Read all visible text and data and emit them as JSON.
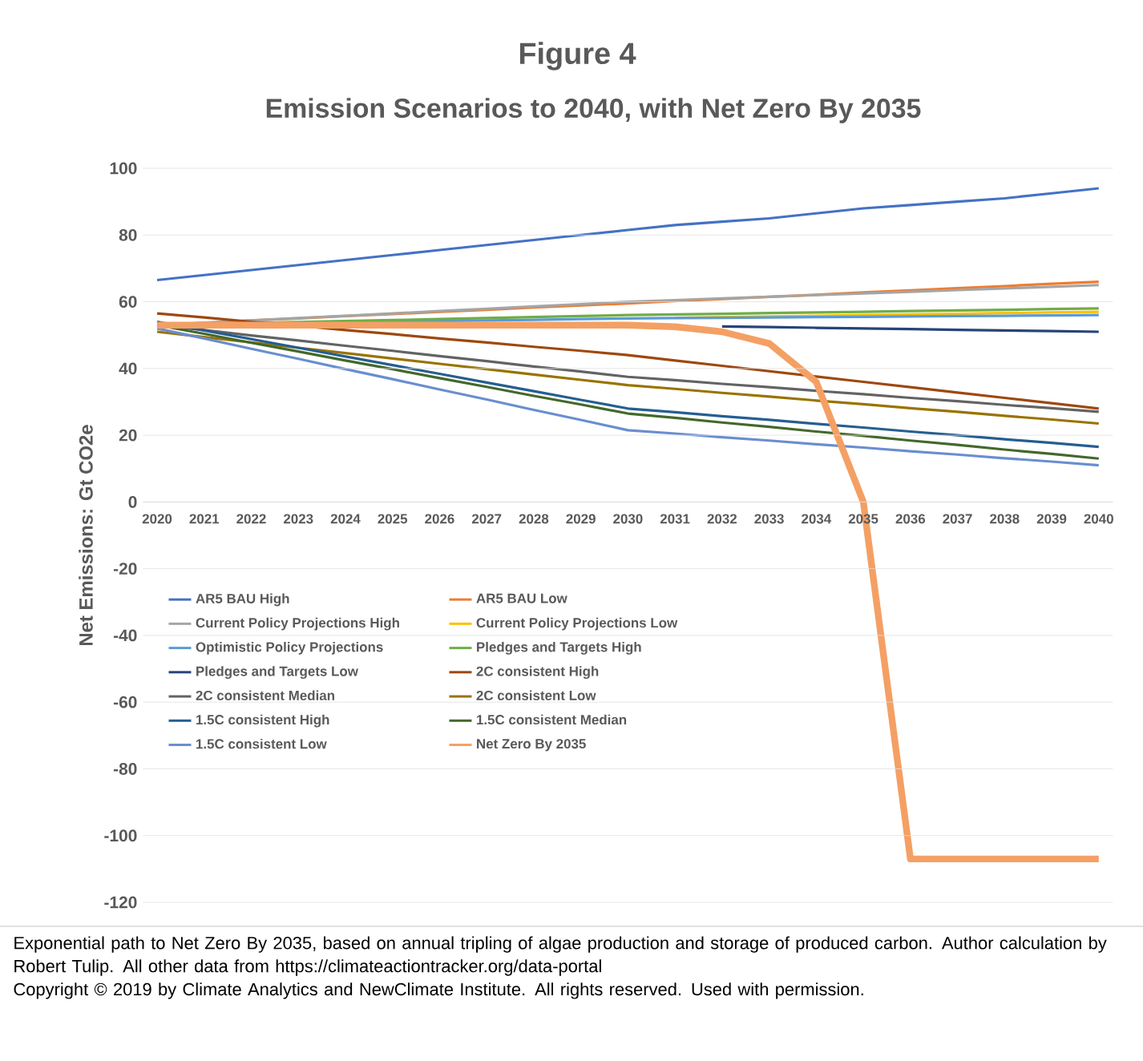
{
  "chart_data": {
    "type": "line",
    "title": "Figure 4",
    "subtitle": "Emission Scenarios to 2040, with Net Zero By 2035",
    "ylabel": "Net Emissions: Gt CO2e",
    "categories": [
      "2020",
      "2021",
      "2022",
      "2023",
      "2024",
      "2025",
      "2026",
      "2027",
      "2028",
      "2029",
      "2030",
      "2031",
      "2032",
      "2033",
      "2034",
      "2035",
      "2036",
      "2037",
      "2038",
      "2039",
      "2040"
    ],
    "ylim": [
      -120,
      100
    ],
    "yticks": [
      -120,
      -100,
      -80,
      -60,
      -40,
      -20,
      0,
      20,
      40,
      60,
      80,
      100
    ],
    "grid": "y",
    "legend": "bottom",
    "marker": "none",
    "line_style": "solid",
    "series": [
      {
        "name": "AR5 BAU High",
        "color": "#4472c4",
        "values": [
          66.5,
          68,
          69.5,
          71,
          72.5,
          74,
          75.5,
          77,
          78.5,
          80,
          81.5,
          83,
          84,
          85,
          86.5,
          88,
          89,
          90,
          91,
          92.5,
          94
        ]
      },
      {
        "name": "AR5 BAU Low",
        "color": "#ed7d31",
        "values": [
          53,
          53.7,
          54.4,
          55,
          55.7,
          56.3,
          57,
          57.6,
          58.3,
          58.9,
          59.5,
          60.2,
          60.8,
          61.5,
          62.1,
          62.8,
          63.4,
          64.1,
          64.7,
          65.4,
          66
        ]
      },
      {
        "name": "Current Policy Projections High",
        "color": "#a5a5a5",
        "values": [
          53,
          53.7,
          54.4,
          55.1,
          55.8,
          56.5,
          57.2,
          57.9,
          58.6,
          59.3,
          60,
          60.5,
          61,
          61.5,
          62,
          62.5,
          63,
          63.5,
          64,
          64.5,
          65
        ]
      },
      {
        "name": "Current Policy Projections Low",
        "color": "#ffc000",
        "values": [
          null,
          null,
          null,
          null,
          null,
          null,
          null,
          null,
          null,
          null,
          null,
          55.2,
          55.4,
          55.6,
          55.8,
          56,
          56.2,
          56.4,
          56.6,
          56.8,
          57
        ]
      },
      {
        "name": "Optimistic Policy Projections",
        "color": "#5b9bd5",
        "values": [
          53,
          53.2,
          53.4,
          53.6,
          53.8,
          54,
          54.2,
          54.4,
          54.6,
          54.8,
          55,
          55.1,
          55.2,
          55.3,
          55.4,
          55.5,
          55.6,
          55.7,
          55.8,
          55.9,
          56
        ]
      },
      {
        "name": "Pledges and Targets High",
        "color": "#70ad47",
        "values": [
          53,
          53.3,
          53.6,
          53.9,
          54.2,
          54.5,
          54.8,
          55.1,
          55.4,
          55.7,
          56,
          56.2,
          56.4,
          56.6,
          56.8,
          57,
          57.2,
          57.4,
          57.6,
          57.8,
          58
        ]
      },
      {
        "name": "Pledges and Targets Low",
        "color": "#264478",
        "values": [
          null,
          null,
          null,
          null,
          null,
          null,
          null,
          null,
          null,
          null,
          null,
          null,
          52.6,
          52.4,
          52.2,
          52,
          51.8,
          51.6,
          51.4,
          51.2,
          51
        ]
      },
      {
        "name": "2C consistent High",
        "color": "#9e480e",
        "values": [
          56.5,
          55.3,
          54,
          52.8,
          51.5,
          50.3,
          49,
          47.8,
          46.5,
          45.3,
          44,
          42.4,
          40.8,
          39.2,
          37.6,
          36,
          34.4,
          32.8,
          31.2,
          29.6,
          28
        ]
      },
      {
        "name": "2C consistent Median",
        "color": "#636363",
        "values": [
          53,
          51.5,
          49.9,
          48.4,
          46.8,
          45.3,
          43.7,
          42.2,
          40.6,
          39.1,
          37.5,
          36.5,
          35.4,
          34.4,
          33.3,
          32.3,
          31.2,
          30.2,
          29.1,
          28.1,
          27
        ]
      },
      {
        "name": "2C consistent Low",
        "color": "#997300",
        "values": [
          51,
          49.4,
          47.8,
          46.2,
          44.6,
          43,
          41.4,
          39.8,
          38.2,
          36.6,
          35,
          33.9,
          32.7,
          31.6,
          30.4,
          29.3,
          28.1,
          27,
          25.8,
          24.7,
          23.5
        ]
      },
      {
        "name": "1.5C consistent High",
        "color": "#255e91",
        "values": [
          54,
          51.4,
          48.8,
          46.2,
          43.6,
          41,
          38.4,
          35.8,
          33.2,
          30.6,
          28,
          26.9,
          25.7,
          24.6,
          23.4,
          22.3,
          21.1,
          20,
          18.8,
          17.7,
          16.5
        ]
      },
      {
        "name": "1.5C consistent Median",
        "color": "#43682b",
        "values": [
          53,
          50.4,
          47.7,
          45.1,
          42.4,
          39.8,
          37.1,
          34.5,
          31.8,
          29.2,
          26.5,
          25.2,
          23.8,
          22.5,
          21.1,
          19.8,
          18.4,
          17.1,
          15.7,
          14.4,
          13
        ]
      },
      {
        "name": "1.5C consistent Low",
        "color": "#698ed0",
        "values": [
          52,
          49,
          45.9,
          42.9,
          39.8,
          36.8,
          33.7,
          30.7,
          27.6,
          24.6,
          21.5,
          20.5,
          19.4,
          18.4,
          17.3,
          16.3,
          15.2,
          14.2,
          13.1,
          12.1,
          11
        ]
      },
      {
        "name": "Net Zero By 2035",
        "color": "#f4a064",
        "values": [
          53,
          53,
          53,
          53,
          53,
          53,
          53,
          53,
          53,
          53,
          53,
          52.5,
          51,
          47.5,
          36,
          0,
          -107,
          -107,
          -107,
          -107,
          -107
        ]
      }
    ],
    "annotations": [
      "Exponential path to Net Zero By 2035, based on annual tripling of algae production and storage of produced carbon.  Author calculation by Robert Tulip.   All other data from https://climateactiontracker.org/data-portal",
      "Copyright © 2019 by Climate Analytics and NewClimate Institute. All rights reserved. Used with permission."
    ]
  }
}
